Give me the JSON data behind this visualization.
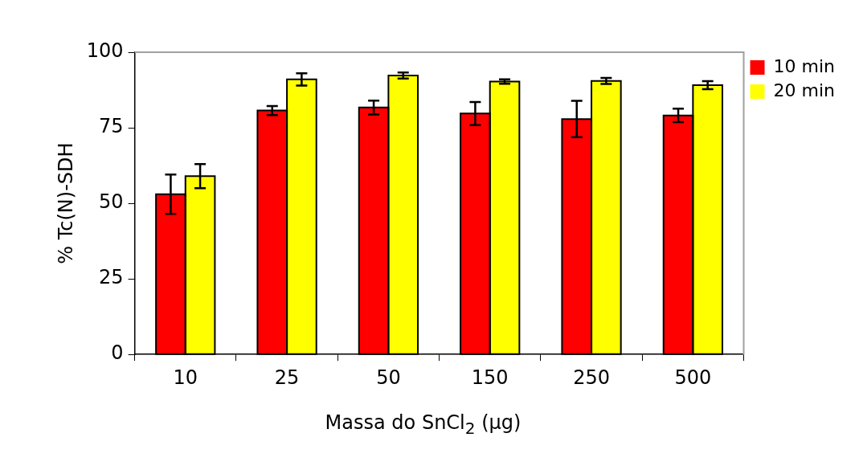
{
  "chart_data": {
    "type": "bar",
    "xlabel": "Massa do SnCl$_{2}$ (μg)",
    "ylabel": "% Tc(N)-SDH",
    "categories": [
      "10",
      "25",
      "50",
      "150",
      "250",
      "500"
    ],
    "series": [
      {
        "name": "10 min",
        "color": "#ff0000",
        "values": [
          53,
          80.7,
          81.7,
          79.7,
          77.9,
          79.1
        ],
        "errors": [
          6.5,
          1.5,
          2.3,
          3.8,
          6,
          2.2
        ]
      },
      {
        "name": "20 min",
        "color": "#ffff00",
        "values": [
          59,
          91,
          92.3,
          90.3,
          90.5,
          89.1
        ],
        "errors": [
          4,
          2,
          1,
          0.7,
          1,
          1.3
        ]
      }
    ],
    "ylim": [
      0,
      100
    ],
    "yticks": [
      0,
      25,
      50,
      75,
      100
    ],
    "grid": false,
    "legend": "top right"
  }
}
